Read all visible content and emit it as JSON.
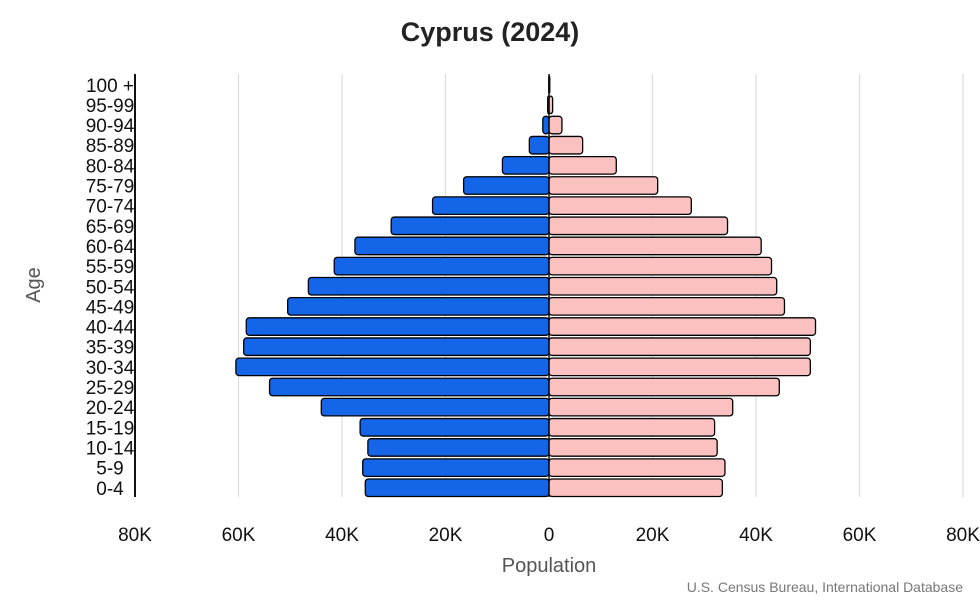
{
  "chart_data": {
    "type": "bar",
    "orientation": "horizontal",
    "subtype": "population-pyramid",
    "title": "Cyprus (2024)",
    "xlabel": "Population",
    "ylabel": "Age",
    "caption": "U.S. Census Bureau, International Database",
    "xlim": [
      -80000,
      80000
    ],
    "x_ticks": [
      -80000,
      -60000,
      -40000,
      -20000,
      0,
      20000,
      40000,
      60000,
      80000
    ],
    "x_tick_labels": [
      "80K",
      "60K",
      "40K",
      "20K",
      "0",
      "20K",
      "40K",
      "60K",
      "80K"
    ],
    "grid": "vertical",
    "categories": [
      "0-4",
      "5-9",
      "10-14",
      "15-19",
      "20-24",
      "25-29",
      "30-34",
      "35-39",
      "40-44",
      "45-49",
      "50-54",
      "55-59",
      "60-64",
      "65-69",
      "70-74",
      "75-79",
      "80-84",
      "85-89",
      "90-94",
      "95-99",
      "100 +"
    ],
    "series": [
      {
        "side": "left",
        "color": "#1565e8",
        "values": [
          35500,
          36000,
          35000,
          36500,
          44000,
          54000,
          60500,
          59000,
          58500,
          50500,
          46500,
          41500,
          37500,
          30500,
          22500,
          16500,
          9000,
          3800,
          1200,
          250,
          60
        ]
      },
      {
        "side": "right",
        "color": "#fbc1c1",
        "values": [
          33500,
          34000,
          32500,
          32000,
          35500,
          44500,
          50500,
          50500,
          51500,
          45500,
          44000,
          43000,
          41000,
          34500,
          27500,
          21000,
          13000,
          6500,
          2500,
          700,
          150
        ]
      }
    ]
  }
}
